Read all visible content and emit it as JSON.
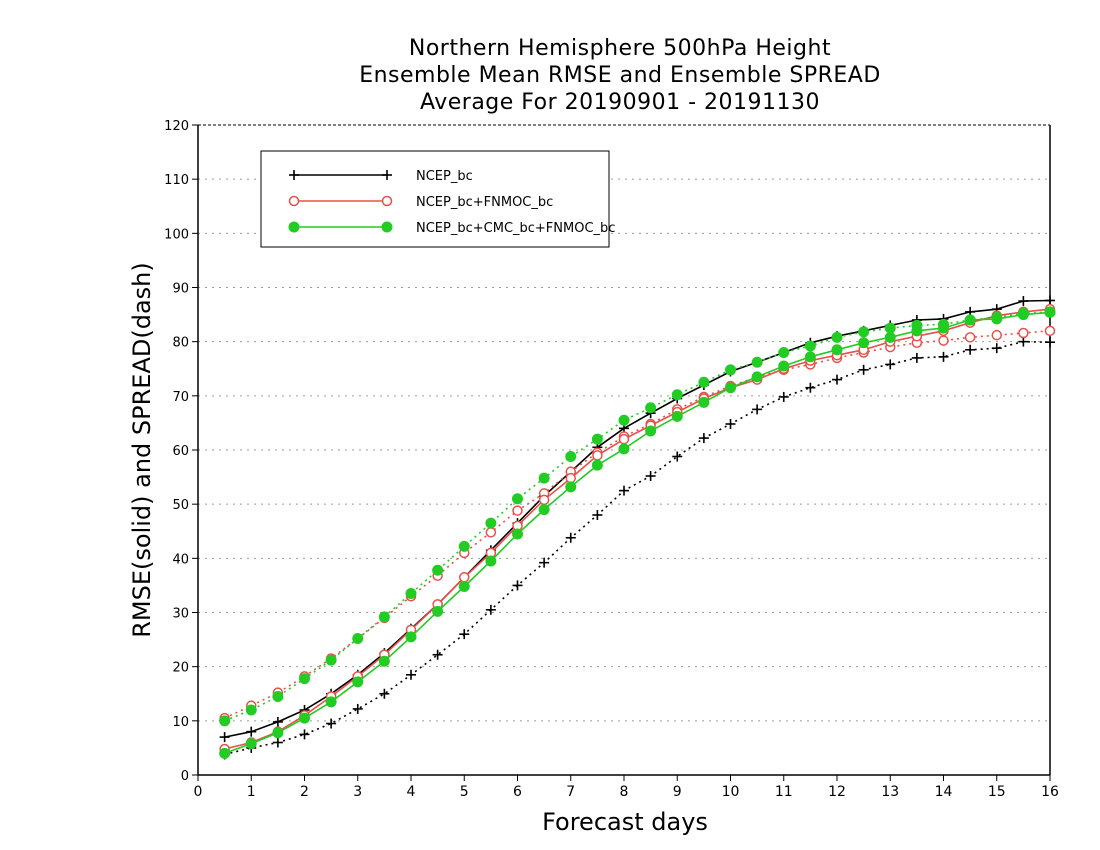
{
  "chart_data": {
    "type": "line",
    "title_lines": [
      "Northern Hemisphere 500hPa Height",
      "Ensemble Mean RMSE and Ensemble SPREAD",
      "Average For 20190901 - 20191130"
    ],
    "xlabel": "Forecast days",
    "ylabel": "RMSE(solid) and SPREAD(dash)",
    "xlim": [
      0,
      16
    ],
    "ylim": [
      0,
      120
    ],
    "xticks": [
      "0",
      "1",
      "2",
      "3",
      "4",
      "5",
      "6",
      "7",
      "8",
      "9",
      "10",
      "11",
      "12",
      "13",
      "14",
      "15",
      "16"
    ],
    "yticks": [
      "0",
      "10",
      "20",
      "30",
      "40",
      "50",
      "60",
      "70",
      "80",
      "90",
      "100",
      "110",
      "120"
    ],
    "grid": true,
    "legend_position": "top-left",
    "x": [
      0.5,
      1,
      1.5,
      2,
      2.5,
      3,
      3.5,
      4,
      4.5,
      5,
      5.5,
      6,
      6.5,
      7,
      7.5,
      8,
      8.5,
      9,
      9.5,
      10,
      10.5,
      11,
      11.5,
      12,
      12.5,
      13,
      13.5,
      14,
      14.5,
      15,
      15.5,
      16
    ],
    "series": [
      {
        "name": "NCEP_bc",
        "color": "#000000",
        "marker": "plus",
        "rmse": [
          7.0,
          8.0,
          9.8,
          12.0,
          15.0,
          18.5,
          22.5,
          27.0,
          31.5,
          36.5,
          41.5,
          46.5,
          51.5,
          56.0,
          60.5,
          64.0,
          66.8,
          69.5,
          72.0,
          74.5,
          76.2,
          78.0,
          79.8,
          81.0,
          82.0,
          83.0,
          84.0,
          84.2,
          85.5,
          86.0,
          87.5,
          87.6
        ],
        "spread": [
          3.8,
          5.0,
          6.0,
          7.5,
          9.5,
          12.2,
          15.0,
          18.5,
          22.2,
          26.0,
          30.5,
          35.0,
          39.2,
          43.8,
          48.0,
          52.5,
          55.2,
          58.8,
          62.2,
          64.8,
          67.5,
          69.8,
          71.5,
          73.0,
          74.8,
          75.8,
          77.0,
          77.2,
          78.5,
          78.8,
          80.0,
          79.9
        ]
      },
      {
        "name": "NCEP_bc+FNMOC_bc",
        "color": "#e8504a",
        "marker": "circle-open",
        "rmse": [
          4.8,
          6.0,
          8.0,
          11.0,
          14.5,
          18.2,
          22.2,
          26.8,
          31.5,
          36.5,
          41.0,
          46.0,
          50.8,
          54.8,
          59.0,
          62.0,
          64.5,
          67.0,
          69.5,
          71.5,
          73.0,
          75.0,
          76.5,
          77.5,
          78.5,
          80.0,
          81.0,
          82.0,
          83.5,
          84.8,
          85.5,
          86.0
        ],
        "spread": [
          10.5,
          12.8,
          15.2,
          18.2,
          21.5,
          25.2,
          29.0,
          33.0,
          36.8,
          41.0,
          44.8,
          48.8,
          52.0,
          56.0,
          59.5,
          62.5,
          64.8,
          67.5,
          69.8,
          71.8,
          73.5,
          74.8,
          75.8,
          77.0,
          78.0,
          79.0,
          79.8,
          80.2,
          80.8,
          81.2,
          81.6,
          82.0
        ]
      },
      {
        "name": "NCEP_bc+CMC_bc+FNMOC_bc",
        "color": "#22cc22",
        "marker": "circle-filled",
        "rmse": [
          4.0,
          5.8,
          7.8,
          10.5,
          13.5,
          17.2,
          21.0,
          25.5,
          30.2,
          34.8,
          39.5,
          44.5,
          49.0,
          53.2,
          57.2,
          60.2,
          63.5,
          66.2,
          68.8,
          71.5,
          73.5,
          75.5,
          77.2,
          78.5,
          79.8,
          80.8,
          82.0,
          82.5,
          84.0,
          84.2,
          85.0,
          85.4
        ],
        "spread": [
          10.0,
          12.0,
          14.5,
          17.8,
          21.2,
          25.2,
          29.2,
          33.5,
          37.8,
          42.2,
          46.5,
          51.0,
          54.8,
          58.8,
          62.0,
          65.5,
          67.8,
          70.2,
          72.5,
          74.8,
          76.2,
          78.0,
          79.2,
          80.8,
          81.8,
          82.5,
          83.0,
          83.2,
          84.0,
          84.5,
          85.2,
          85.5
        ]
      }
    ]
  }
}
